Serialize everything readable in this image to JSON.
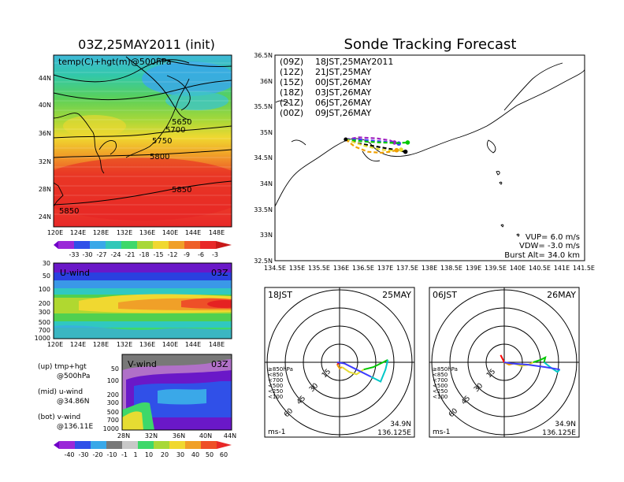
{
  "header": {
    "left_title": "03Z,25MAY2011 (init)",
    "right_title": "Sonde Tracking Forecast"
  },
  "maps": {
    "temp_panel": {
      "label": "temp(C)+hgt(m)@500hPa",
      "lat_ticks": [
        "44N",
        "40N",
        "36N",
        "32N",
        "28N",
        "24N"
      ],
      "lon_ticks": [
        "120E",
        "124E",
        "128E",
        "132E",
        "136E",
        "140E",
        "144E",
        "148E"
      ],
      "contour_labels": [
        "5650",
        "5700",
        "5750",
        "5800",
        "5850",
        "5850"
      ]
    },
    "temp_colorbar": [
      "-33",
      "-30",
      "-27",
      "-24",
      "-21",
      "-18",
      "-15",
      "-12",
      "-9",
      "-6",
      "-3"
    ],
    "uwind_panel": {
      "label": "U-wind",
      "time": "03Z",
      "p_ticks": [
        "30",
        "50",
        "100",
        "200",
        "300",
        "500",
        "700",
        "1000"
      ],
      "lon_ticks": [
        "120E",
        "124E",
        "128E",
        "132E",
        "136E",
        "140E",
        "144E",
        "148E"
      ]
    },
    "vwind_panel": {
      "label": "V-wind",
      "time": "03Z",
      "p_ticks": [
        "50",
        "100",
        "200",
        "300",
        "500",
        "700",
        "1000"
      ],
      "lat_ticks": [
        "28N",
        "32N",
        "36N",
        "40N",
        "44N"
      ]
    },
    "wind_colorbar": [
      "-40",
      "-30",
      "-20",
      "-10",
      "-1",
      "1",
      "10",
      "20",
      "30",
      "40",
      "50",
      "60"
    ],
    "notes": [
      {
        "a": "(up) tmp+hgt",
        "b": "@500hPa"
      },
      {
        "a": "(mid) u-wind",
        "b": "@34.86N"
      },
      {
        "a": "(bot) v-wind",
        "b": "@136.11E"
      }
    ]
  },
  "chart_data": [
    {
      "type": "scatter",
      "title": "Sonde Tracking Forecast",
      "xlim": [
        134.5,
        141.5
      ],
      "ylim": [
        32.5,
        36.5
      ],
      "x_ticks": [
        "134.5E",
        "135E",
        "135.5E",
        "136E",
        "136.5E",
        "137E",
        "137.5E",
        "138E",
        "138.5E",
        "139E",
        "139.5E",
        "140E",
        "140.5E",
        "141E",
        "141.5E"
      ],
      "y_ticks": [
        "36.5N",
        "36N",
        "35.5N",
        "35N",
        "34.5N",
        "34N",
        "33.5N",
        "33N",
        "32.5N"
      ],
      "launch_point": {
        "lon": 136.1,
        "lat": 34.86
      },
      "legend": [
        {
          "code": "(09Z)",
          "text": "18JST,25MAY2011",
          "color": "#000000"
        },
        {
          "code": "(12Z)",
          "text": "21JST,25MAY",
          "color": "#a020c0"
        },
        {
          "code": "(15Z)",
          "text": "00JST,26MAY",
          "color": "#3c3cff"
        },
        {
          "code": "(18Z)",
          "text": "03JST,26MAY",
          "color": "#00c800"
        },
        {
          "code": "(21Z)",
          "text": "06JST,26MAY",
          "color": "#e6dc32"
        },
        {
          "code": "(00Z)",
          "text": "09JST,26MAY",
          "color": "#f0a000"
        }
      ],
      "series": [
        {
          "name": "(09Z)",
          "color": "#000000",
          "x": [
            136.1,
            136.4,
            136.8,
            137.2,
            137.45
          ],
          "y": [
            34.86,
            34.78,
            34.72,
            34.66,
            34.62
          ]
        },
        {
          "name": "(12Z)",
          "color": "#a020c0",
          "x": [
            136.1,
            136.4,
            136.8,
            137.1,
            137.2
          ],
          "y": [
            34.86,
            34.9,
            34.88,
            34.84,
            34.8
          ]
        },
        {
          "name": "(15Z)",
          "color": "#3c3cff",
          "x": [
            136.1,
            136.4,
            136.8,
            137.15,
            137.3
          ],
          "y": [
            34.86,
            34.86,
            34.83,
            34.8,
            34.78
          ]
        },
        {
          "name": "(18Z)",
          "color": "#00c800",
          "x": [
            136.1,
            136.5,
            136.9,
            137.3,
            137.5
          ],
          "y": [
            34.86,
            34.82,
            34.8,
            34.79,
            34.8
          ]
        },
        {
          "name": "(21Z)",
          "color": "#e6dc32",
          "x": [
            136.1,
            136.5,
            136.9,
            137.2,
            137.35
          ],
          "y": [
            34.86,
            34.74,
            34.66,
            34.64,
            34.66
          ]
        },
        {
          "name": "(00Z)",
          "color": "#f0a000",
          "x": [
            136.1,
            136.3,
            136.6,
            136.9,
            137.1,
            137.25
          ],
          "y": [
            34.86,
            34.72,
            34.62,
            34.6,
            34.62,
            34.65
          ]
        }
      ],
      "params": {
        "vup": "VUP= 6.0 m/s",
        "vdw": "VDW= -3.0 m/s",
        "burst": "Burst Alt= 34.0 km"
      }
    },
    {
      "type": "hodograph",
      "time_label": "18JST",
      "date_label": "25MAY",
      "ring_labels": [
        "15",
        "30",
        "45",
        "60"
      ],
      "unit": "ms-1",
      "position": [
        "34.9N",
        "136.125E"
      ],
      "levels": [
        {
          "label": "≥850hPa",
          "color": "#ff0000"
        },
        {
          "label": "<850",
          "color": "#f0a000"
        },
        {
          "label": "<700",
          "color": "#e6dc32"
        },
        {
          "label": "<500",
          "color": "#00c800"
        },
        {
          "label": "<250",
          "color": "#00c8c8"
        },
        {
          "label": "<100",
          "color": "#3c3cff"
        }
      ],
      "segments": [
        {
          "color": "#ff0000",
          "u": [
            0,
            -1,
            -2
          ],
          "v": [
            0,
            -1,
            -2
          ]
        },
        {
          "color": "#f0a000",
          "u": [
            -2,
            0,
            2
          ],
          "v": [
            -2,
            -5,
            -4
          ]
        },
        {
          "color": "#e6dc32",
          "u": [
            2,
            8,
            14,
            20
          ],
          "v": [
            -4,
            -8,
            -10,
            -6
          ]
        },
        {
          "color": "#00c800",
          "u": [
            20,
            28,
            36,
            40
          ],
          "v": [
            -6,
            -4,
            0,
            2
          ]
        },
        {
          "color": "#00c8c8",
          "u": [
            40,
            38,
            34,
            26
          ],
          "v": [
            2,
            -6,
            -16,
            -12
          ]
        },
        {
          "color": "#3c3cff",
          "u": [
            26,
            14,
            4,
            -2
          ],
          "v": [
            -12,
            -6,
            -1,
            0
          ]
        }
      ]
    },
    {
      "type": "hodograph",
      "time_label": "06JST",
      "date_label": "26MAY",
      "ring_labels": [
        "15",
        "30",
        "45",
        "60"
      ],
      "unit": "ms-1",
      "position": [
        "34.9N",
        "136.125E"
      ],
      "levels": [
        {
          "label": "≥850hPa",
          "color": "#ff0000"
        },
        {
          "label": "<850",
          "color": "#f0a000"
        },
        {
          "label": "<700",
          "color": "#e6dc32"
        },
        {
          "label": "<500",
          "color": "#00c800"
        },
        {
          "label": "<250",
          "color": "#00c8c8"
        },
        {
          "label": "<100",
          "color": "#3c3cff"
        }
      ],
      "segments": [
        {
          "color": "#ff0000",
          "u": [
            -3,
            -1,
            0
          ],
          "v": [
            6,
            2,
            0
          ]
        },
        {
          "color": "#f0a000",
          "u": [
            0,
            4,
            8
          ],
          "v": [
            0,
            -2,
            -1
          ]
        },
        {
          "color": "#e6dc32",
          "u": [
            8,
            14,
            20,
            24
          ],
          "v": [
            -1,
            -3,
            -2,
            0
          ]
        },
        {
          "color": "#00c800",
          "u": [
            24,
            30,
            34,
            33
          ],
          "v": [
            0,
            2,
            4,
            0
          ]
        },
        {
          "color": "#00c8c8",
          "u": [
            33,
            38,
            44,
            46
          ],
          "v": [
            0,
            -4,
            -8,
            -6
          ]
        },
        {
          "color": "#3c3cff",
          "u": [
            46,
            34,
            20,
            6,
            0
          ],
          "v": [
            -6,
            -4,
            -2,
            -1,
            0
          ]
        }
      ]
    }
  ]
}
